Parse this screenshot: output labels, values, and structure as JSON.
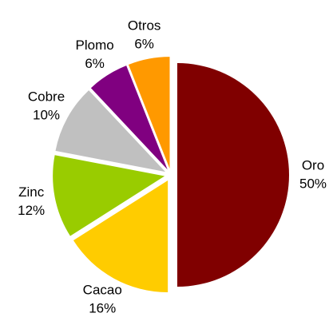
{
  "chart_data": {
    "type": "pie",
    "categories": [
      "Oro",
      "Cacao",
      "Zinc",
      "Cobre",
      "Plomo",
      "Otros"
    ],
    "values": [
      50,
      16,
      12,
      10,
      6,
      6
    ],
    "value_labels": [
      "50%",
      "16%",
      "12%",
      "10%",
      "6%",
      "6%"
    ],
    "colors": [
      "#800000",
      "#ffcc00",
      "#99cc00",
      "#c0c0c0",
      "#800080",
      "#ff9900"
    ]
  }
}
